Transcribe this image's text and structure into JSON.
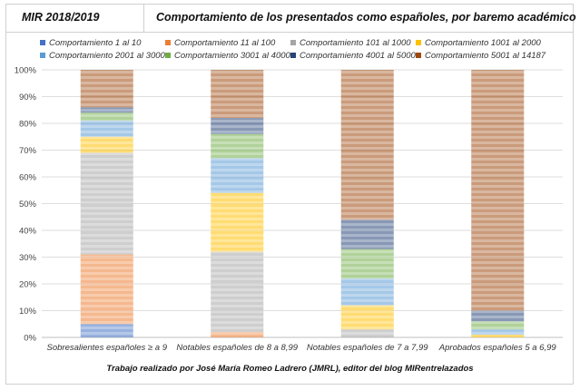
{
  "header": {
    "mir_label": "MIR 2018/2019",
    "title": "Comportamiento de los presentados como españoles, por baremo académico"
  },
  "footer": "Trabajo realizado por José María Romeo Ladrero (JMRL), editor del blog MIRentrelazados",
  "chart_data": {
    "type": "bar",
    "stacked": true,
    "stacked_percent": true,
    "categories": [
      "Sobresalientes españoles ≥ a 9",
      "Notables españoles de 8 a 8,99",
      "Notables españoles de 7 a 7,99",
      "Aprobados españoles 5 a 6,99"
    ],
    "ylim": [
      0,
      100
    ],
    "yticks": [
      "0%",
      "10%",
      "20%",
      "30%",
      "40%",
      "50%",
      "60%",
      "70%",
      "80%",
      "90%",
      "100%"
    ],
    "legend_position": "top",
    "grid": true,
    "series": [
      {
        "name": "Comportamiento 1 al 10",
        "color": "#4472c4",
        "values": [
          5,
          0,
          0,
          0
        ]
      },
      {
        "name": "Comportamiento 11 al 100",
        "color": "#ed7d31",
        "values": [
          26,
          2,
          0,
          0
        ]
      },
      {
        "name": "Comportamiento 101 al 1000",
        "color": "#a5a5a5",
        "values": [
          38,
          30,
          3,
          0
        ]
      },
      {
        "name": "Comportamiento 1001 al 2000",
        "color": "#ffc000",
        "values": [
          6,
          22,
          9,
          1
        ]
      },
      {
        "name": "Comportamiento 2001 al 3000",
        "color": "#5b9bd5",
        "values": [
          6,
          13,
          10,
          2
        ]
      },
      {
        "name": "Comportamiento 3001 al 4000",
        "color": "#70ad47",
        "values": [
          3,
          9,
          11,
          3
        ]
      },
      {
        "name": "Comportamiento 4001 al 5000",
        "color": "#264478",
        "values": [
          2,
          6,
          11,
          4
        ]
      },
      {
        "name": "Comportamiento 5001 al 14187",
        "color": "#9e480e",
        "values": [
          14,
          18,
          56,
          90
        ]
      }
    ]
  }
}
